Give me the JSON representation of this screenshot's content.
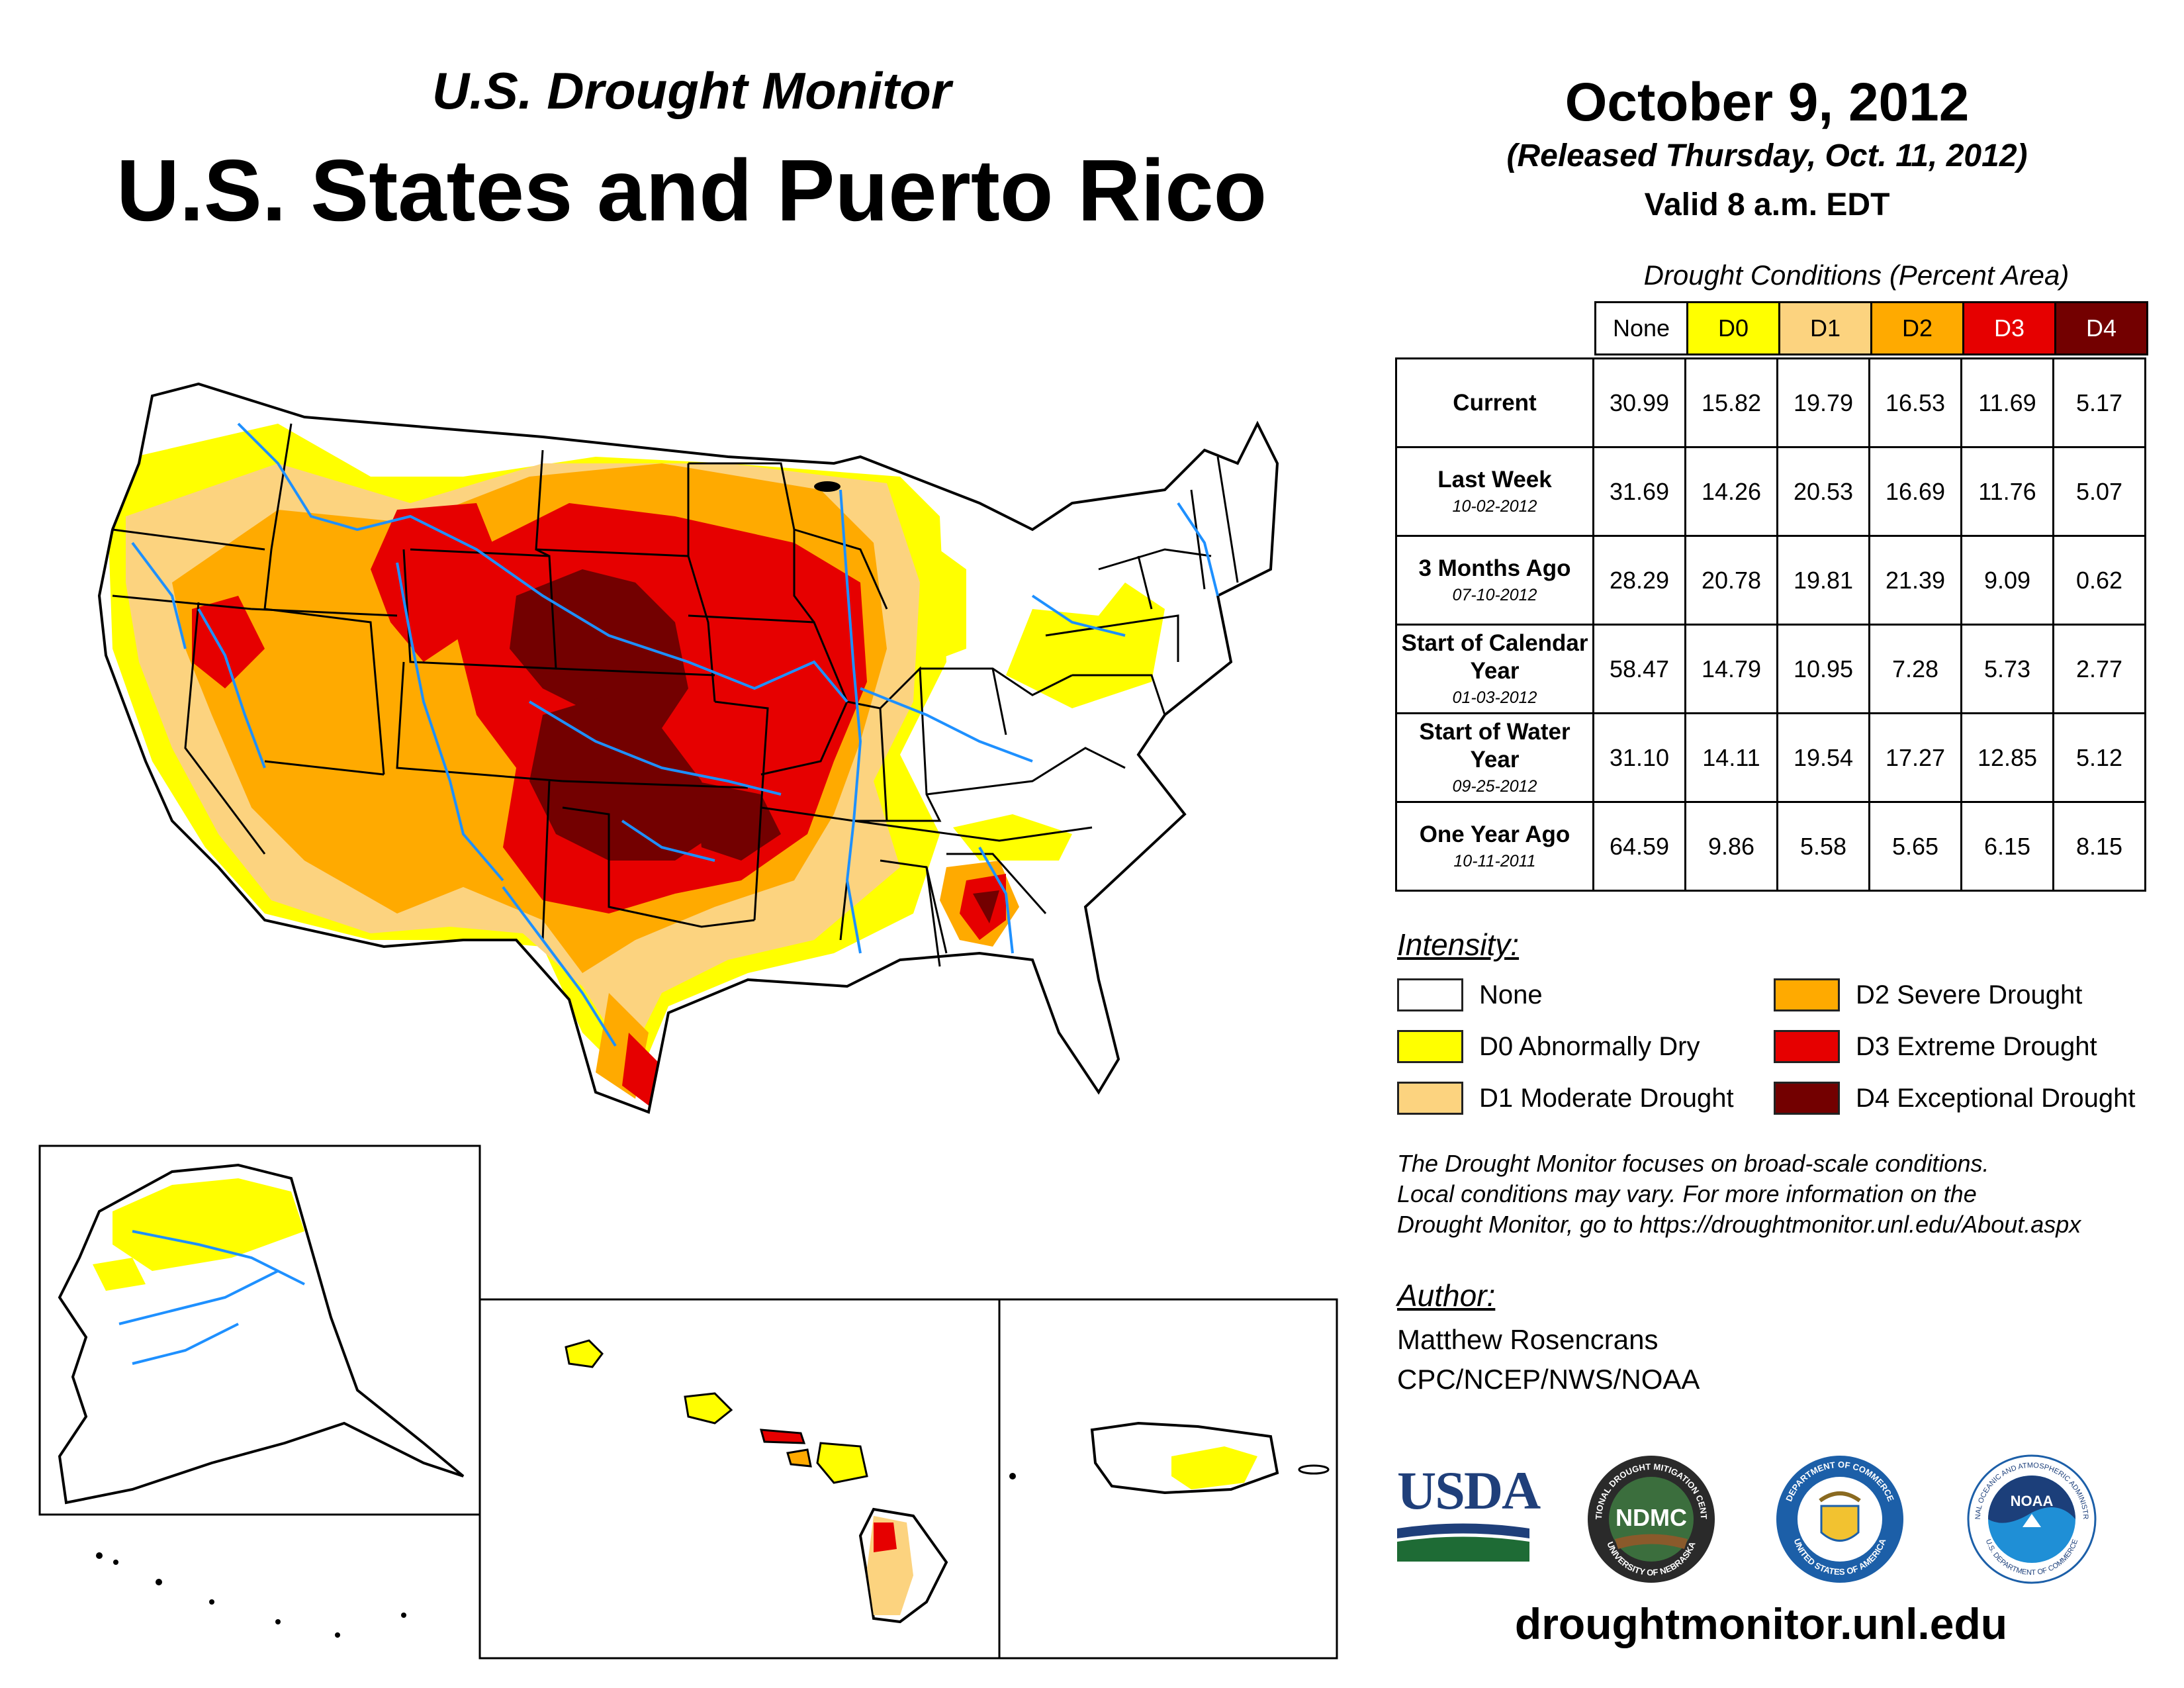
{
  "header": {
    "subtitle": "U.S. Drought Monitor",
    "title": "U.S. States and Puerto Rico",
    "date": "October 9, 2012",
    "released": "(Released Thursday, Oct. 11, 2012)",
    "valid": "Valid 8 a.m. EDT"
  },
  "table": {
    "caption": "Drought Conditions (Percent Area)",
    "columns": [
      "None",
      "D0",
      "D1",
      "D2",
      "D3",
      "D4"
    ],
    "column_colors": [
      "#ffffff",
      "#ffff00",
      "#fcd37f",
      "#ffaa00",
      "#e60000",
      "#730000"
    ],
    "rows": [
      {
        "label": "Current",
        "date": "",
        "values": [
          "30.99",
          "15.82",
          "19.79",
          "16.53",
          "11.69",
          "5.17"
        ]
      },
      {
        "label": "Last Week",
        "date": "10-02-2012",
        "values": [
          "31.69",
          "14.26",
          "20.53",
          "16.69",
          "11.76",
          "5.07"
        ]
      },
      {
        "label": "3 Months Ago",
        "date": "07-10-2012",
        "values": [
          "28.29",
          "20.78",
          "19.81",
          "21.39",
          "9.09",
          "0.62"
        ]
      },
      {
        "label": "Start of Calendar Year",
        "date": "01-03-2012",
        "values": [
          "58.47",
          "14.79",
          "10.95",
          "7.28",
          "5.73",
          "2.77"
        ]
      },
      {
        "label": "Start of Water Year",
        "date": "09-25-2012",
        "values": [
          "31.10",
          "14.11",
          "19.54",
          "17.27",
          "12.85",
          "5.12"
        ]
      },
      {
        "label": "One Year Ago",
        "date": "10-11-2011",
        "values": [
          "64.59",
          "9.86",
          "5.58",
          "5.65",
          "6.15",
          "8.15"
        ]
      }
    ]
  },
  "legend": {
    "title": "Intensity:",
    "items": [
      {
        "label": "None",
        "color": "#ffffff"
      },
      {
        "label": "D0 Abnormally Dry",
        "color": "#ffff00"
      },
      {
        "label": "D1 Moderate Drought",
        "color": "#fcd37f"
      },
      {
        "label": "D2 Severe Drought",
        "color": "#ffaa00"
      },
      {
        "label": "D3 Extreme Drought",
        "color": "#e60000"
      },
      {
        "label": "D4 Exceptional Drought",
        "color": "#730000"
      }
    ]
  },
  "note": {
    "line1": "The Drought Monitor focuses on broad-scale conditions.",
    "line2": "Local conditions may vary. For more information on the",
    "line3": "Drought Monitor, go to https://droughtmonitor.unl.edu/About.aspx"
  },
  "author": {
    "label": "Author:",
    "name": "Matthew Rosencrans",
    "org": "CPC/NCEP/NWS/NOAA"
  },
  "logos": {
    "usda": "USDA",
    "ndmc": "NDMC",
    "ndmc_ring": "NATIONAL DROUGHT MITIGATION CENTER",
    "ndmc_ring_bottom": "UNIVERSITY OF NEBRASKA",
    "commerce_ring": "DEPARTMENT OF COMMERCE",
    "commerce_ring_bottom": "UNITED STATES OF AMERICA",
    "noaa": "NOAA",
    "noaa_ring": "NATIONAL OCEANIC AND ATMOSPHERIC ADMINISTRATION",
    "noaa_ring_bottom": "U.S. DEPARTMENT OF COMMERCE"
  },
  "website": "droughtmonitor.unl.edu"
}
